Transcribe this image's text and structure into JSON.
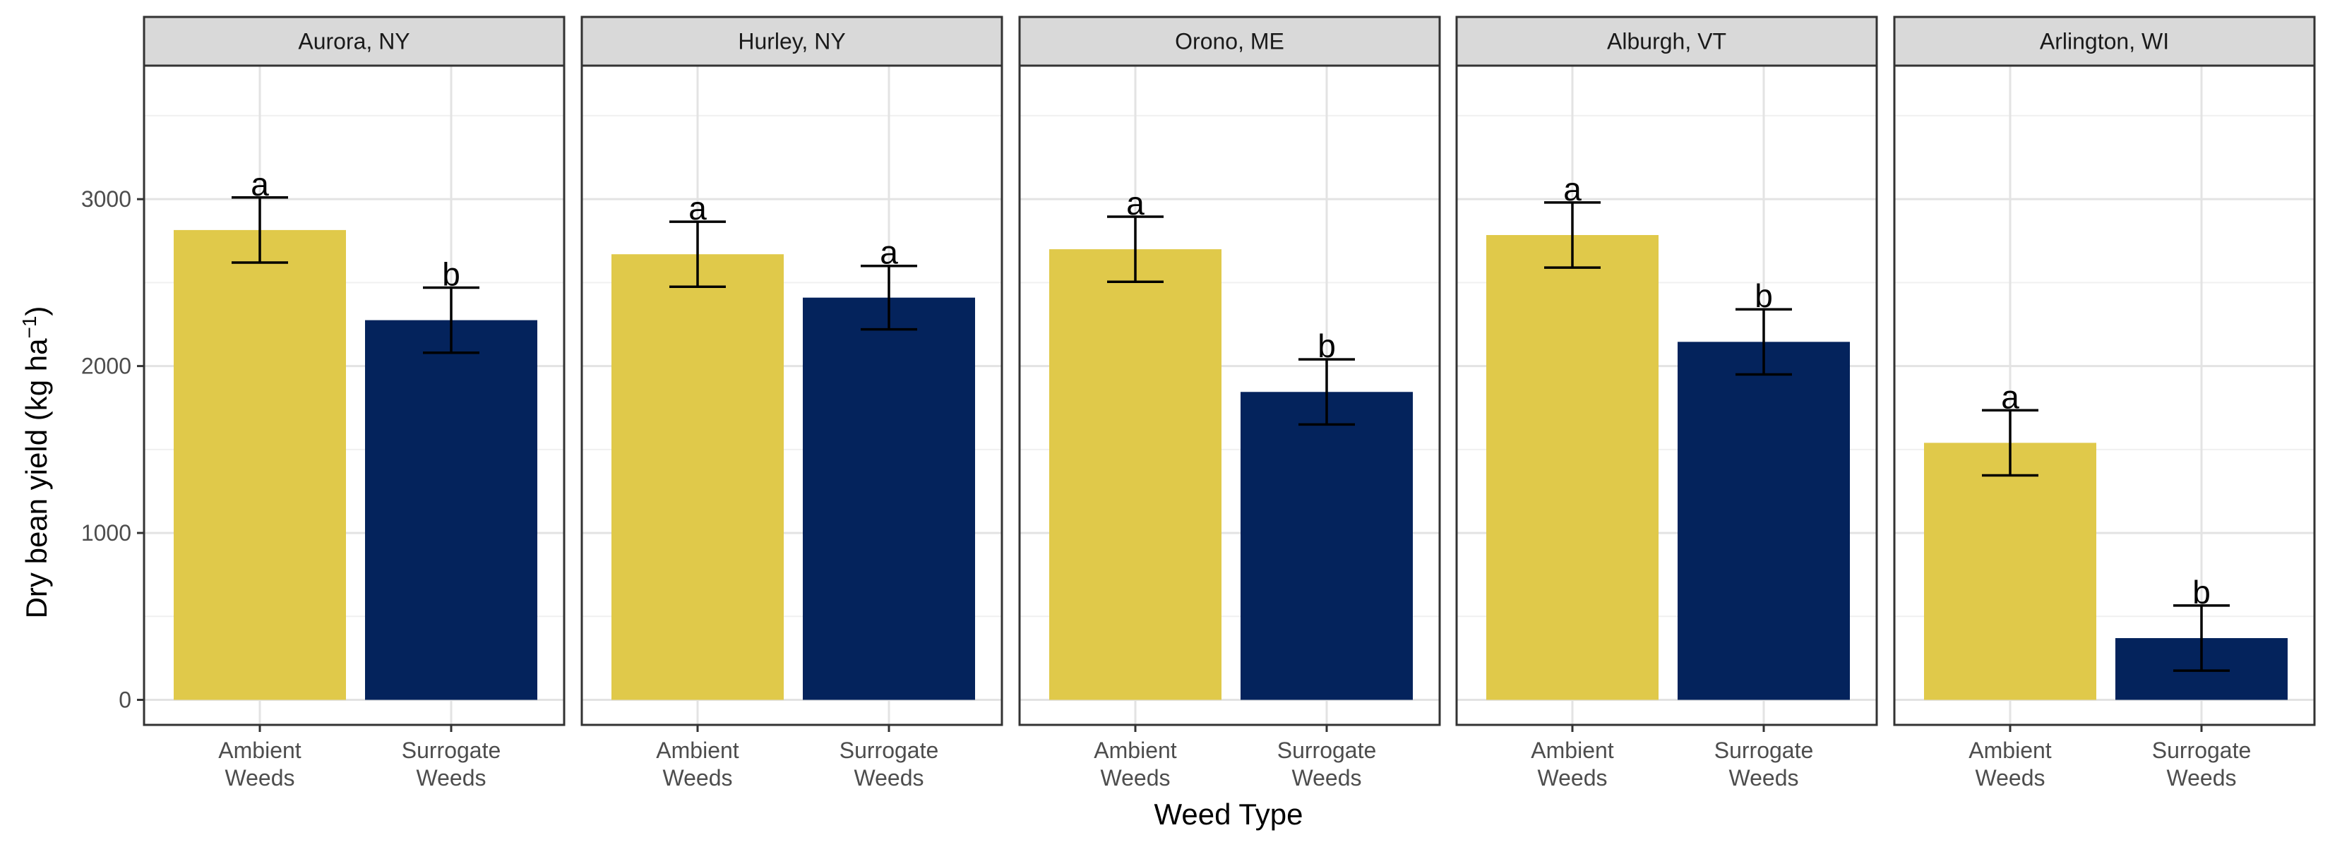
{
  "chart_data": {
    "type": "bar",
    "title": "",
    "xlabel": "Weed Type",
    "ylabel_main": "Dry bean yield (kg ha",
    "ylabel_sup": "−1",
    "ylabel_close": ")",
    "ylim": [
      -150,
      3800
    ],
    "yticks": [
      0,
      1000,
      2000,
      3000
    ],
    "ytick_labels": [
      "0",
      "1000",
      "2000",
      "3000"
    ],
    "categories": [
      {
        "line1": "Ambient",
        "line2": "Weeds"
      },
      {
        "line1": "Surrogate",
        "line2": "Weeds"
      }
    ],
    "colors": {
      "Ambient": "#E0C94A",
      "Surrogate": "#04235C"
    },
    "grid": true,
    "legend": "none",
    "facets": [
      {
        "name": "Aurora, NY",
        "values": [
          2815,
          2275
        ],
        "se": [
          195,
          195
        ],
        "letters": [
          "a",
          "b"
        ]
      },
      {
        "name": "Hurley, NY",
        "values": [
          2670,
          2410
        ],
        "se": [
          195,
          190
        ],
        "letters": [
          "a",
          "a"
        ]
      },
      {
        "name": "Orono, ME",
        "values": [
          2700,
          1845
        ],
        "se": [
          195,
          195
        ],
        "letters": [
          "a",
          "b"
        ]
      },
      {
        "name": "Alburgh, VT",
        "values": [
          2785,
          2145
        ],
        "se": [
          195,
          195
        ],
        "letters": [
          "a",
          "b"
        ]
      },
      {
        "name": "Arlington, WI",
        "values": [
          1540,
          370
        ],
        "se": [
          195,
          195
        ],
        "letters": [
          "a",
          "b"
        ]
      }
    ]
  }
}
